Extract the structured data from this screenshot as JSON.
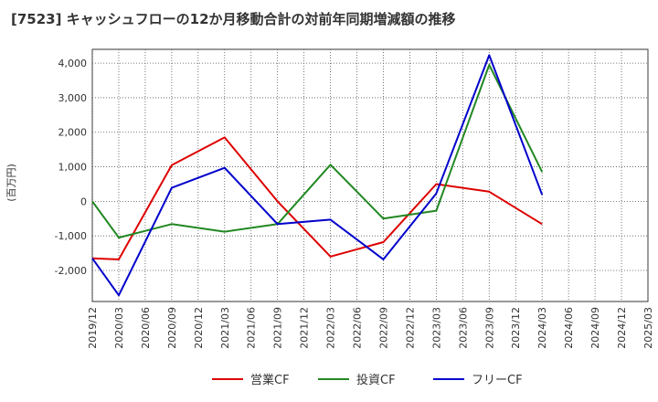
{
  "chart_data": {
    "type": "line",
    "title": "[7523]  キャッシュフローの12か月移動合計の対前年同期増減額の推移",
    "ylabel": "(百万円)",
    "xlabel": "",
    "ylim": [
      -2900,
      4400
    ],
    "yticks": [
      -2000,
      -1000,
      0,
      1000,
      2000,
      3000,
      4000
    ],
    "ytick_labels": [
      "-2,000",
      "-1,000",
      "0",
      "1,000",
      "2,000",
      "3,000",
      "4,000"
    ],
    "categories": [
      "2019/12",
      "2020/03",
      "2020/06",
      "2020/09",
      "2020/12",
      "2021/03",
      "2021/06",
      "2021/09",
      "2021/12",
      "2022/03",
      "2022/06",
      "2022/09",
      "2022/12",
      "2023/03",
      "2023/06",
      "2023/09",
      "2023/12",
      "2024/03",
      "2024/06",
      "2024/09",
      "2024/12",
      "2025/03"
    ],
    "grid": true,
    "legend_position": "bottom",
    "series": [
      {
        "name": "営業CF",
        "color": "#dd0000",
        "values": [
          -1650,
          -1680,
          null,
          1050,
          null,
          1850,
          null,
          0,
          null,
          -1600,
          null,
          -1180,
          null,
          500,
          null,
          280,
          null,
          -660,
          null,
          null,
          null,
          null
        ]
      },
      {
        "name": "投資CF",
        "color": "#228822",
        "values": [
          0,
          -1050,
          null,
          -660,
          null,
          -880,
          null,
          -660,
          null,
          1060,
          null,
          -500,
          null,
          -270,
          null,
          3950,
          null,
          850,
          null,
          null,
          null,
          null
        ]
      },
      {
        "name": "フリーCF",
        "color": "#0000cc",
        "values": [
          -1650,
          -2720,
          null,
          390,
          null,
          970,
          null,
          -660,
          null,
          -530,
          null,
          -1680,
          null,
          230,
          null,
          4230,
          null,
          190,
          null,
          null,
          null,
          null
        ]
      }
    ]
  }
}
